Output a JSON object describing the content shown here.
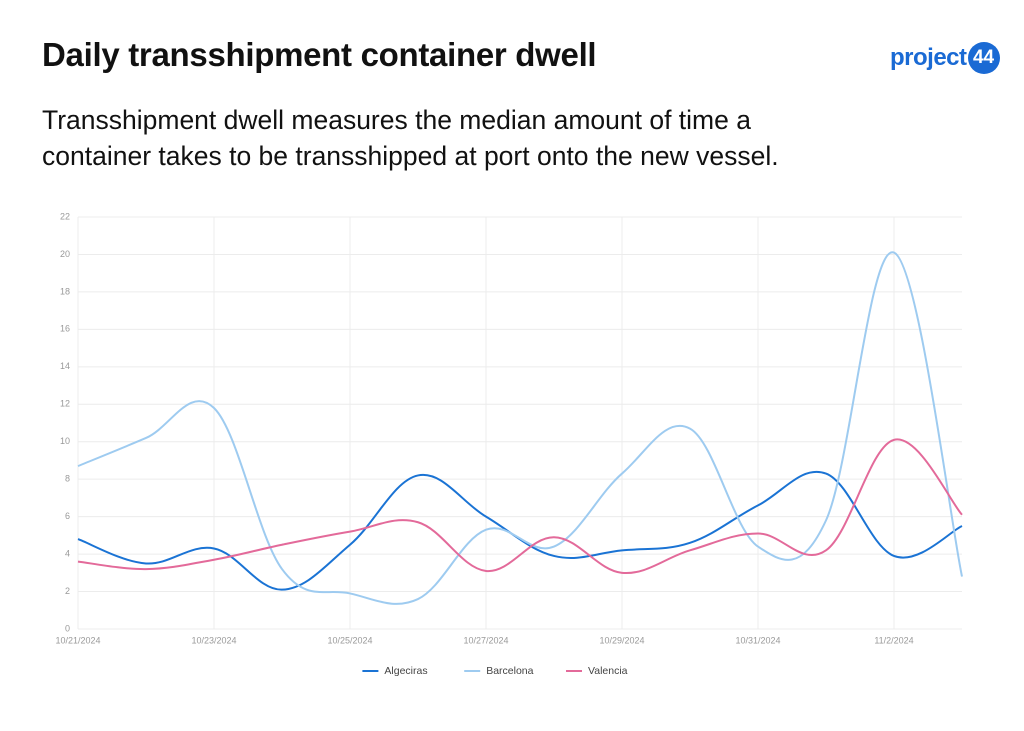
{
  "logo": {
    "word": "project",
    "number": "44"
  },
  "chart_data": {
    "type": "line",
    "title": "Daily transshipment container dwell",
    "subtitle": "Transshipment dwell measures the median amount of time a container takes to be transshipped at port onto the new vessel.",
    "categories": [
      "10/21/2024",
      null,
      "10/23/2024",
      null,
      "10/25/2024",
      null,
      "10/27/2024",
      null,
      "10/29/2024",
      null,
      "10/31/2024",
      null,
      "11/2/2024",
      null
    ],
    "series": [
      {
        "name": "Algeciras",
        "color": "#1a73d4",
        "values": [
          4.8,
          3.5,
          4.3,
          2.1,
          4.5,
          8.2,
          6.0,
          3.9,
          4.2,
          4.6,
          6.6,
          8.3,
          3.9,
          5.5
        ]
      },
      {
        "name": "Barcelona",
        "color": "#9ecbf0",
        "values": [
          8.7,
          10.2,
          11.8,
          3.2,
          1.9,
          1.6,
          5.3,
          4.4,
          8.3,
          10.7,
          4.4,
          5.8,
          20.1,
          2.8
        ]
      },
      {
        "name": "Valencia",
        "color": "#e36a9a",
        "values": [
          3.6,
          3.2,
          3.7,
          4.5,
          5.2,
          5.7,
          3.1,
          4.9,
          3.0,
          4.2,
          5.1,
          4.2,
          10.1,
          6.1
        ]
      }
    ],
    "ylim": [
      0,
      22
    ],
    "yticks": [
      0,
      2,
      4,
      6,
      8,
      10,
      12,
      14,
      16,
      18,
      20,
      22
    ],
    "grid": true,
    "legend": "bottom"
  }
}
